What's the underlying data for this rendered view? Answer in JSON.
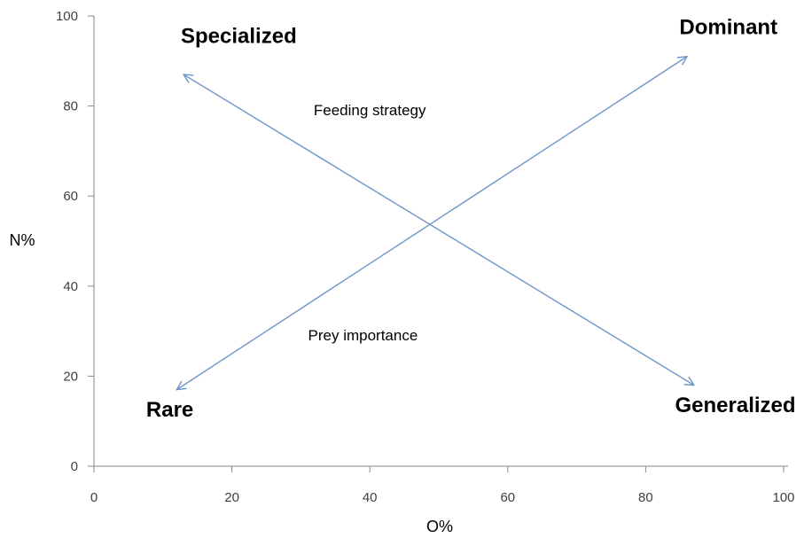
{
  "chart_data": {
    "type": "scatter",
    "xlabel": "O%",
    "ylabel": "N%",
    "xlim": [
      0,
      100
    ],
    "ylim": [
      0,
      100
    ],
    "xticks": [
      "0",
      "20",
      "40",
      "60",
      "80",
      "100"
    ],
    "yticks": [
      "0",
      "20",
      "40",
      "60",
      "80",
      "100"
    ],
    "grid": false,
    "arrows": [
      {
        "name": "Prey importance",
        "from": [
          12,
          17
        ],
        "to": [
          86,
          91
        ],
        "double_headed": true,
        "color": "#6e95c9"
      },
      {
        "name": "Feeding strategy",
        "from": [
          13,
          87
        ],
        "to": [
          87,
          18
        ],
        "double_headed": true,
        "color": "#6e95c9"
      }
    ],
    "annotations": [
      {
        "text": "Specialized",
        "x": 21,
        "y": 94
      },
      {
        "text": "Dominant",
        "x": 92,
        "y": 96
      },
      {
        "text": "Rare",
        "x": 11,
        "y": 11
      },
      {
        "text": "Generalized",
        "x": 93,
        "y": 12
      },
      {
        "text": "Feeding strategy",
        "x": 40,
        "y": 78
      },
      {
        "text": "Prey importance",
        "x": 39,
        "y": 28
      }
    ]
  }
}
